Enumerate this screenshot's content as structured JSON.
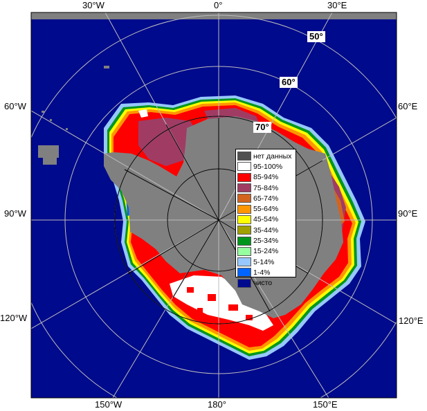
{
  "map": {
    "background": "#000a8c",
    "land_color": "#808080"
  },
  "longitude_labels": {
    "top_30w": "30°W",
    "top_0": "0°",
    "top_30e": "30°E",
    "left_60w": "60°W",
    "left_90w": "90°W",
    "left_120w": "120°W",
    "right_60e": "60°E",
    "right_90e": "90°E",
    "right_120e": "120°E",
    "bottom_150w": "150°W",
    "bottom_180": "180°",
    "bottom_150e": "150°E"
  },
  "latitude_labels": {
    "lat50": "50°",
    "lat60": "60°",
    "lat70": "70°"
  },
  "legend": {
    "items": [
      {
        "label": "нет данных",
        "color": "#505050"
      },
      {
        "label": "95-100%",
        "color": "#ffffff"
      },
      {
        "label": "85-94%",
        "color": "#ff0000"
      },
      {
        "label": "75-84%",
        "color": "#a03c64"
      },
      {
        "label": "65-74%",
        "color": "#d2641e"
      },
      {
        "label": "55-64%",
        "color": "#ff9600"
      },
      {
        "label": "45-54%",
        "color": "#ffff00"
      },
      {
        "label": "35-44%",
        "color": "#a0a000"
      },
      {
        "label": "25-34%",
        "color": "#00961e"
      },
      {
        "label": "15-24%",
        "color": "#96ffa0"
      },
      {
        "label": "5-14%",
        "color": "#96c8ff"
      },
      {
        "label": "1-4%",
        "color": "#0064ff"
      },
      {
        "label": "чисто",
        "color": "#000a8c"
      }
    ]
  }
}
